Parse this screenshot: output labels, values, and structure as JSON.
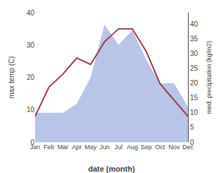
{
  "chart_data": {
    "type": "line",
    "xlabel": "date (month)",
    "ylabel": "max temp (C)",
    "y2label": "med. precipitation (kg/m2)",
    "categories": [
      "Jan",
      "Feb",
      "Mar",
      "Apr",
      "May",
      "Jun",
      "Jul",
      "Aug",
      "Sep",
      "Oct",
      "Nov",
      "Dec"
    ],
    "series": [
      {
        "type": "area",
        "axis": "y2",
        "color": "#b8c4e8",
        "values": [
          10,
          10,
          10,
          13,
          22,
          40,
          33,
          38,
          28,
          20,
          20,
          12
        ]
      },
      {
        "type": "line",
        "color": "#9b3a4a",
        "values": [
          8,
          17,
          21,
          26,
          24,
          31,
          35,
          35,
          28,
          18,
          13,
          8
        ]
      }
    ],
    "ylim": [
      0,
      40
    ],
    "yticks": [
      0,
      10,
      20,
      30,
      40
    ],
    "y2lim": [
      0,
      44
    ],
    "y2ticks": [
      0,
      5,
      10,
      15,
      20,
      25,
      30,
      35,
      40
    ],
    "grid": false
  }
}
